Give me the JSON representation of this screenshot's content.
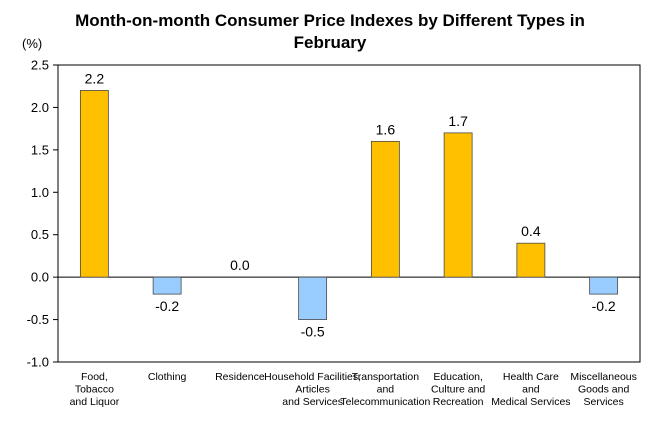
{
  "chart_data": {
    "type": "bar",
    "title": "Month-on-month Consumer Price Indexes by Different Types in\nFebruary",
    "y_unit": "(%)",
    "categories": [
      [
        "Food,",
        "Tobacco",
        "and Liquor"
      ],
      [
        "Clothing"
      ],
      [
        "Residence"
      ],
      [
        "Household Facilities,",
        "Articles",
        "and Services"
      ],
      [
        "Transportation",
        "and",
        "Telecommunication"
      ],
      [
        "Education,",
        "Culture and",
        "Recreation"
      ],
      [
        "Health Care",
        "and",
        "Medical Services"
      ],
      [
        "Miscellaneous",
        "Goods and",
        "Services"
      ]
    ],
    "values": [
      2.2,
      -0.2,
      0.0,
      -0.5,
      1.6,
      1.7,
      0.4,
      -0.2
    ],
    "value_labels": [
      "2.2",
      "-0.2",
      "0.0",
      "-0.5",
      "1.6",
      "1.7",
      "0.4",
      "-0.2"
    ],
    "ylim": [
      -1.0,
      2.5
    ],
    "yticks": [
      "2.5",
      "2.0",
      "1.5",
      "1.0",
      "0.5",
      "0.0",
      "-0.5",
      "-1.0"
    ],
    "ytick_values": [
      2.5,
      2.0,
      1.5,
      1.0,
      0.5,
      0.0,
      -0.5,
      -1.0
    ],
    "colors": {
      "positive": "#FFC000",
      "negative": "#99CCFF",
      "bar_edge": "#4a4a4a",
      "axis": "#000000"
    },
    "grid": false,
    "legend": "none"
  }
}
